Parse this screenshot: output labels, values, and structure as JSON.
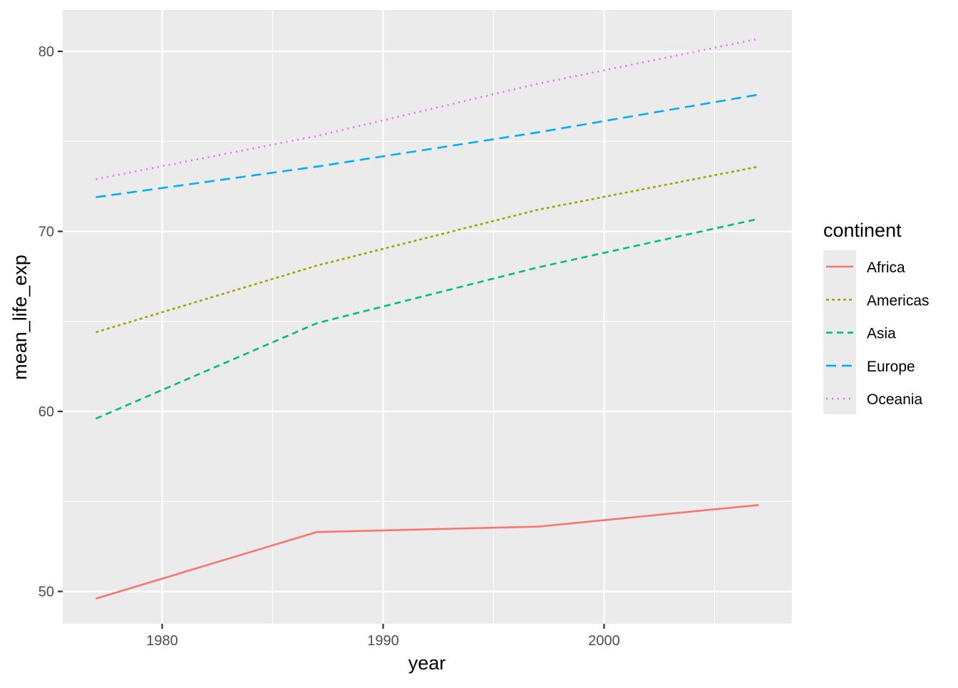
{
  "chart_data": {
    "type": "line",
    "title": "",
    "xlabel": "year",
    "ylabel": "mean_life_exp",
    "x": [
      1977,
      1987,
      1997,
      2007
    ],
    "xlim": [
      1975.5,
      2008.5
    ],
    "ylim": [
      48.2,
      82.3
    ],
    "x_ticks": [
      "1980",
      "1990",
      "2000"
    ],
    "x_tick_values": [
      1980,
      1990,
      2000
    ],
    "y_ticks": [
      "50",
      "60",
      "70",
      "80"
    ],
    "y_tick_values": [
      50,
      60,
      70,
      80
    ],
    "grid": true,
    "legend": {
      "title": "continent",
      "placement": "right"
    },
    "series": [
      {
        "name": "Africa",
        "color": "#F8766D",
        "linetype": "solid",
        "values": [
          49.6,
          53.3,
          53.6,
          54.8
        ]
      },
      {
        "name": "Americas",
        "color": "#A3A500",
        "linetype": "dotted",
        "values": [
          64.4,
          68.1,
          71.2,
          73.6
        ]
      },
      {
        "name": "Asia",
        "color": "#00BF7D",
        "linetype": "dashed",
        "values": [
          59.6,
          64.9,
          68.0,
          70.7
        ]
      },
      {
        "name": "Europe",
        "color": "#00B0F6",
        "linetype": "longdash",
        "values": [
          71.9,
          73.6,
          75.5,
          77.6
        ]
      },
      {
        "name": "Oceania",
        "color": "#E76BF3",
        "linetype": "dotted2",
        "values": [
          72.9,
          75.3,
          78.2,
          80.7
        ]
      }
    ]
  }
}
